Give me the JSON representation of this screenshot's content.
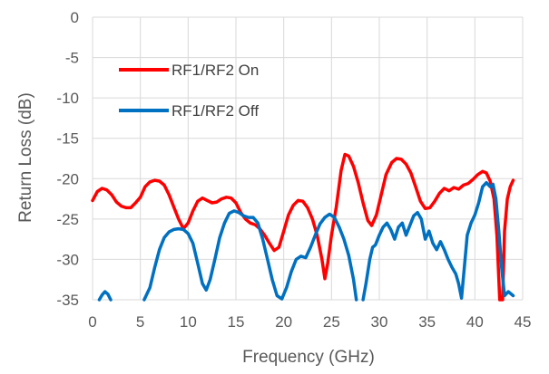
{
  "chart_data": {
    "type": "line",
    "title": "",
    "xlabel": "Frequency (GHz)",
    "ylabel": "Return Loss (dB)",
    "xlim": [
      0,
      45
    ],
    "ylim": [
      -35,
      0
    ],
    "x_ticks": [
      "0",
      "5",
      "10",
      "15",
      "20",
      "25",
      "30",
      "35",
      "40",
      "45"
    ],
    "y_ticks": [
      "0",
      "-5",
      "-10",
      "-15",
      "-20",
      "-25",
      "-30",
      "-35"
    ],
    "grid": true,
    "legend_position": "top-left",
    "series": [
      {
        "name": "RF1/RF2 On",
        "color": "#ff0000",
        "points": [
          [
            0,
            -22.7
          ],
          [
            0.5,
            -21.6
          ],
          [
            1,
            -21.2
          ],
          [
            1.5,
            -21.4
          ],
          [
            2,
            -22.0
          ],
          [
            2.5,
            -22.9
          ],
          [
            3,
            -23.4
          ],
          [
            3.5,
            -23.6
          ],
          [
            4,
            -23.6
          ],
          [
            4.5,
            -23.0
          ],
          [
            5,
            -22.3
          ],
          [
            5.5,
            -21.0
          ],
          [
            6,
            -20.4
          ],
          [
            6.5,
            -20.2
          ],
          [
            7,
            -20.3
          ],
          [
            7.5,
            -20.8
          ],
          [
            8,
            -22.0
          ],
          [
            8.5,
            -23.5
          ],
          [
            9,
            -25.0
          ],
          [
            9.5,
            -26.2
          ],
          [
            10,
            -25.5
          ],
          [
            10.5,
            -24.0
          ],
          [
            11,
            -22.8
          ],
          [
            11.5,
            -22.4
          ],
          [
            12,
            -22.7
          ],
          [
            12.5,
            -23.0
          ],
          [
            13,
            -22.9
          ],
          [
            13.5,
            -22.5
          ],
          [
            14,
            -22.3
          ],
          [
            14.5,
            -22.4
          ],
          [
            15,
            -23.0
          ],
          [
            15.5,
            -24.2
          ],
          [
            16,
            -25.0
          ],
          [
            16.5,
            -25.5
          ],
          [
            17,
            -25.7
          ],
          [
            17.5,
            -26.2
          ],
          [
            18,
            -27.0
          ],
          [
            18.5,
            -28.0
          ],
          [
            19,
            -28.9
          ],
          [
            19.5,
            -28.5
          ],
          [
            20,
            -26.5
          ],
          [
            20.5,
            -24.5
          ],
          [
            21,
            -23.3
          ],
          [
            21.5,
            -22.7
          ],
          [
            22,
            -22.8
          ],
          [
            22.5,
            -23.6
          ],
          [
            23,
            -25.0
          ],
          [
            23.5,
            -27.0
          ],
          [
            24,
            -30.0
          ],
          [
            24.3,
            -32.4
          ],
          [
            24.6,
            -30.5
          ],
          [
            25,
            -27.0
          ],
          [
            25.5,
            -23.5
          ],
          [
            26,
            -19.0
          ],
          [
            26.4,
            -17.0
          ],
          [
            26.8,
            -17.2
          ],
          [
            27.3,
            -18.5
          ],
          [
            27.8,
            -20.5
          ],
          [
            28.3,
            -23.0
          ],
          [
            28.8,
            -25.2
          ],
          [
            29.2,
            -25.8
          ],
          [
            29.7,
            -24.5
          ],
          [
            30.2,
            -22.0
          ],
          [
            30.7,
            -19.5
          ],
          [
            31.3,
            -18.0
          ],
          [
            31.8,
            -17.5
          ],
          [
            32.3,
            -17.6
          ],
          [
            32.8,
            -18.2
          ],
          [
            33.3,
            -19.3
          ],
          [
            33.8,
            -21.0
          ],
          [
            34.3,
            -22.8
          ],
          [
            34.8,
            -23.7
          ],
          [
            35.3,
            -23.6
          ],
          [
            35.8,
            -22.8
          ],
          [
            36.3,
            -21.8
          ],
          [
            36.8,
            -21.2
          ],
          [
            37.3,
            -21.5
          ],
          [
            37.8,
            -21.1
          ],
          [
            38.3,
            -21.3
          ],
          [
            38.8,
            -20.8
          ],
          [
            39.3,
            -20.6
          ],
          [
            39.8,
            -20.1
          ],
          [
            40.3,
            -19.5
          ],
          [
            40.8,
            -19.1
          ],
          [
            41.2,
            -19.3
          ],
          [
            41.6,
            -20.3
          ],
          [
            42.0,
            -22.5
          ],
          [
            42.3,
            -27.0
          ],
          [
            42.6,
            -35.0
          ],
          [
            42.9,
            -35.0
          ],
          [
            43.1,
            -26.5
          ],
          [
            43.4,
            -22.5
          ],
          [
            43.7,
            -21.0
          ],
          [
            44,
            -20.2
          ]
        ]
      },
      {
        "name": "RF1/RF2 Off",
        "color": "#0070c0",
        "segments": [
          [
            [
              0.7,
              -35.0
            ],
            [
              1.0,
              -34.4
            ],
            [
              1.3,
              -34.0
            ],
            [
              1.6,
              -34.3
            ],
            [
              1.9,
              -35.0
            ]
          ],
          [
            [
              5.4,
              -35.0
            ],
            [
              6.0,
              -33.5
            ],
            [
              6.5,
              -31.0
            ],
            [
              7.0,
              -28.8
            ],
            [
              7.5,
              -27.3
            ],
            [
              8.0,
              -26.6
            ],
            [
              8.5,
              -26.3
            ],
            [
              9.0,
              -26.2
            ],
            [
              9.5,
              -26.3
            ],
            [
              10.0,
              -26.8
            ],
            [
              10.5,
              -28.0
            ],
            [
              11.0,
              -30.5
            ],
            [
              11.5,
              -33.0
            ],
            [
              11.9,
              -33.8
            ],
            [
              12.3,
              -32.5
            ],
            [
              12.8,
              -30.0
            ],
            [
              13.3,
              -27.3
            ],
            [
              13.8,
              -25.5
            ],
            [
              14.3,
              -24.3
            ],
            [
              14.8,
              -24.0
            ],
            [
              15.3,
              -24.2
            ],
            [
              15.8,
              -24.6
            ],
            [
              16.3,
              -24.8
            ],
            [
              16.8,
              -24.8
            ],
            [
              17.3,
              -25.5
            ],
            [
              17.8,
              -27.5
            ],
            [
              18.3,
              -30.0
            ],
            [
              18.8,
              -32.5
            ],
            [
              19.3,
              -34.5
            ],
            [
              19.8,
              -34.9
            ],
            [
              20.3,
              -33.5
            ],
            [
              20.8,
              -31.5
            ],
            [
              21.3,
              -30.0
            ],
            [
              21.8,
              -29.6
            ],
            [
              22.3,
              -29.8
            ],
            [
              22.8,
              -28.5
            ],
            [
              23.3,
              -27.0
            ],
            [
              23.8,
              -25.6
            ],
            [
              24.3,
              -24.8
            ],
            [
              24.8,
              -24.4
            ],
            [
              25.3,
              -24.8
            ],
            [
              25.8,
              -26.0
            ],
            [
              26.3,
              -27.5
            ],
            [
              26.8,
              -29.5
            ],
            [
              27.3,
              -32.5
            ],
            [
              27.6,
              -35.0
            ]
          ],
          [
            [
              28.3,
              -35.0
            ],
            [
              28.6,
              -33.0
            ],
            [
              29.0,
              -30.0
            ],
            [
              29.3,
              -28.5
            ],
            [
              29.6,
              -28.2
            ],
            [
              30.0,
              -27.0
            ],
            [
              30.4,
              -26.0
            ],
            [
              30.8,
              -25.5
            ],
            [
              31.2,
              -26.3
            ],
            [
              31.6,
              -27.5
            ],
            [
              32.0,
              -26.0
            ],
            [
              32.4,
              -25.5
            ],
            [
              32.8,
              -27.0
            ],
            [
              33.2,
              -25.8
            ],
            [
              33.6,
              -24.6
            ],
            [
              34.0,
              -24.2
            ],
            [
              34.4,
              -25.0
            ],
            [
              34.8,
              -27.5
            ],
            [
              35.2,
              -26.5
            ],
            [
              35.6,
              -28.0
            ],
            [
              36.0,
              -28.8
            ],
            [
              36.4,
              -27.8
            ],
            [
              36.8,
              -28.8
            ],
            [
              37.2,
              -30.0
            ],
            [
              37.6,
              -31.0
            ],
            [
              38.0,
              -31.8
            ],
            [
              38.3,
              -33.0
            ],
            [
              38.6,
              -34.8
            ],
            [
              38.9,
              -31.0
            ],
            [
              39.2,
              -27.0
            ],
            [
              39.6,
              -25.5
            ],
            [
              40.0,
              -24.5
            ],
            [
              40.4,
              -23.0
            ],
            [
              40.8,
              -21.0
            ],
            [
              41.2,
              -20.5
            ],
            [
              41.6,
              -21.0
            ],
            [
              41.9,
              -20.7
            ],
            [
              42.2,
              -22.5
            ],
            [
              42.5,
              -26.5
            ],
            [
              42.8,
              -31.0
            ],
            [
              43.1,
              -34.5
            ],
            [
              43.5,
              -34.0
            ],
            [
              44.0,
              -34.5
            ]
          ]
        ]
      }
    ]
  }
}
